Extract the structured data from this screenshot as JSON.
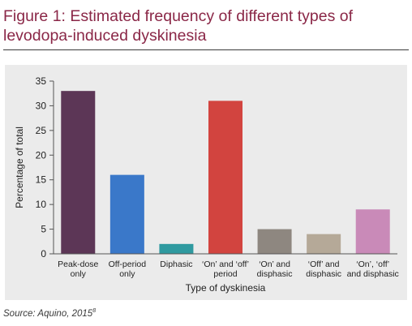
{
  "figure": {
    "title": "Figure 1: Estimated frequency of different types of levodopa-induced dyskinesia",
    "source_prefix": "Source: Aquino, 2015",
    "source_ref": "8"
  },
  "chart_data": {
    "type": "bar",
    "title": "",
    "xlabel": "Type of dyskinesia",
    "ylabel": "Percentage of total",
    "ylim": [
      0,
      35
    ],
    "yticks": [
      0,
      5,
      10,
      15,
      20,
      25,
      30,
      35
    ],
    "grid": false,
    "categories": [
      [
        "Peak-dose",
        "only"
      ],
      [
        "Off-period",
        "only"
      ],
      [
        "Diphasic"
      ],
      [
        "‘On’ and ‘off’",
        "period"
      ],
      [
        "‘On’ and",
        "disphasic"
      ],
      [
        "‘Off’ and",
        "disphasic"
      ],
      [
        "‘On’, ‘off’",
        "and disphasic"
      ]
    ],
    "values": [
      33,
      16,
      2,
      31,
      5,
      4,
      9
    ],
    "colors": [
      "#5c3656",
      "#3a78c9",
      "#2f9aa0",
      "#d2443f",
      "#8e8780",
      "#b5a998",
      "#c98ab8"
    ]
  }
}
